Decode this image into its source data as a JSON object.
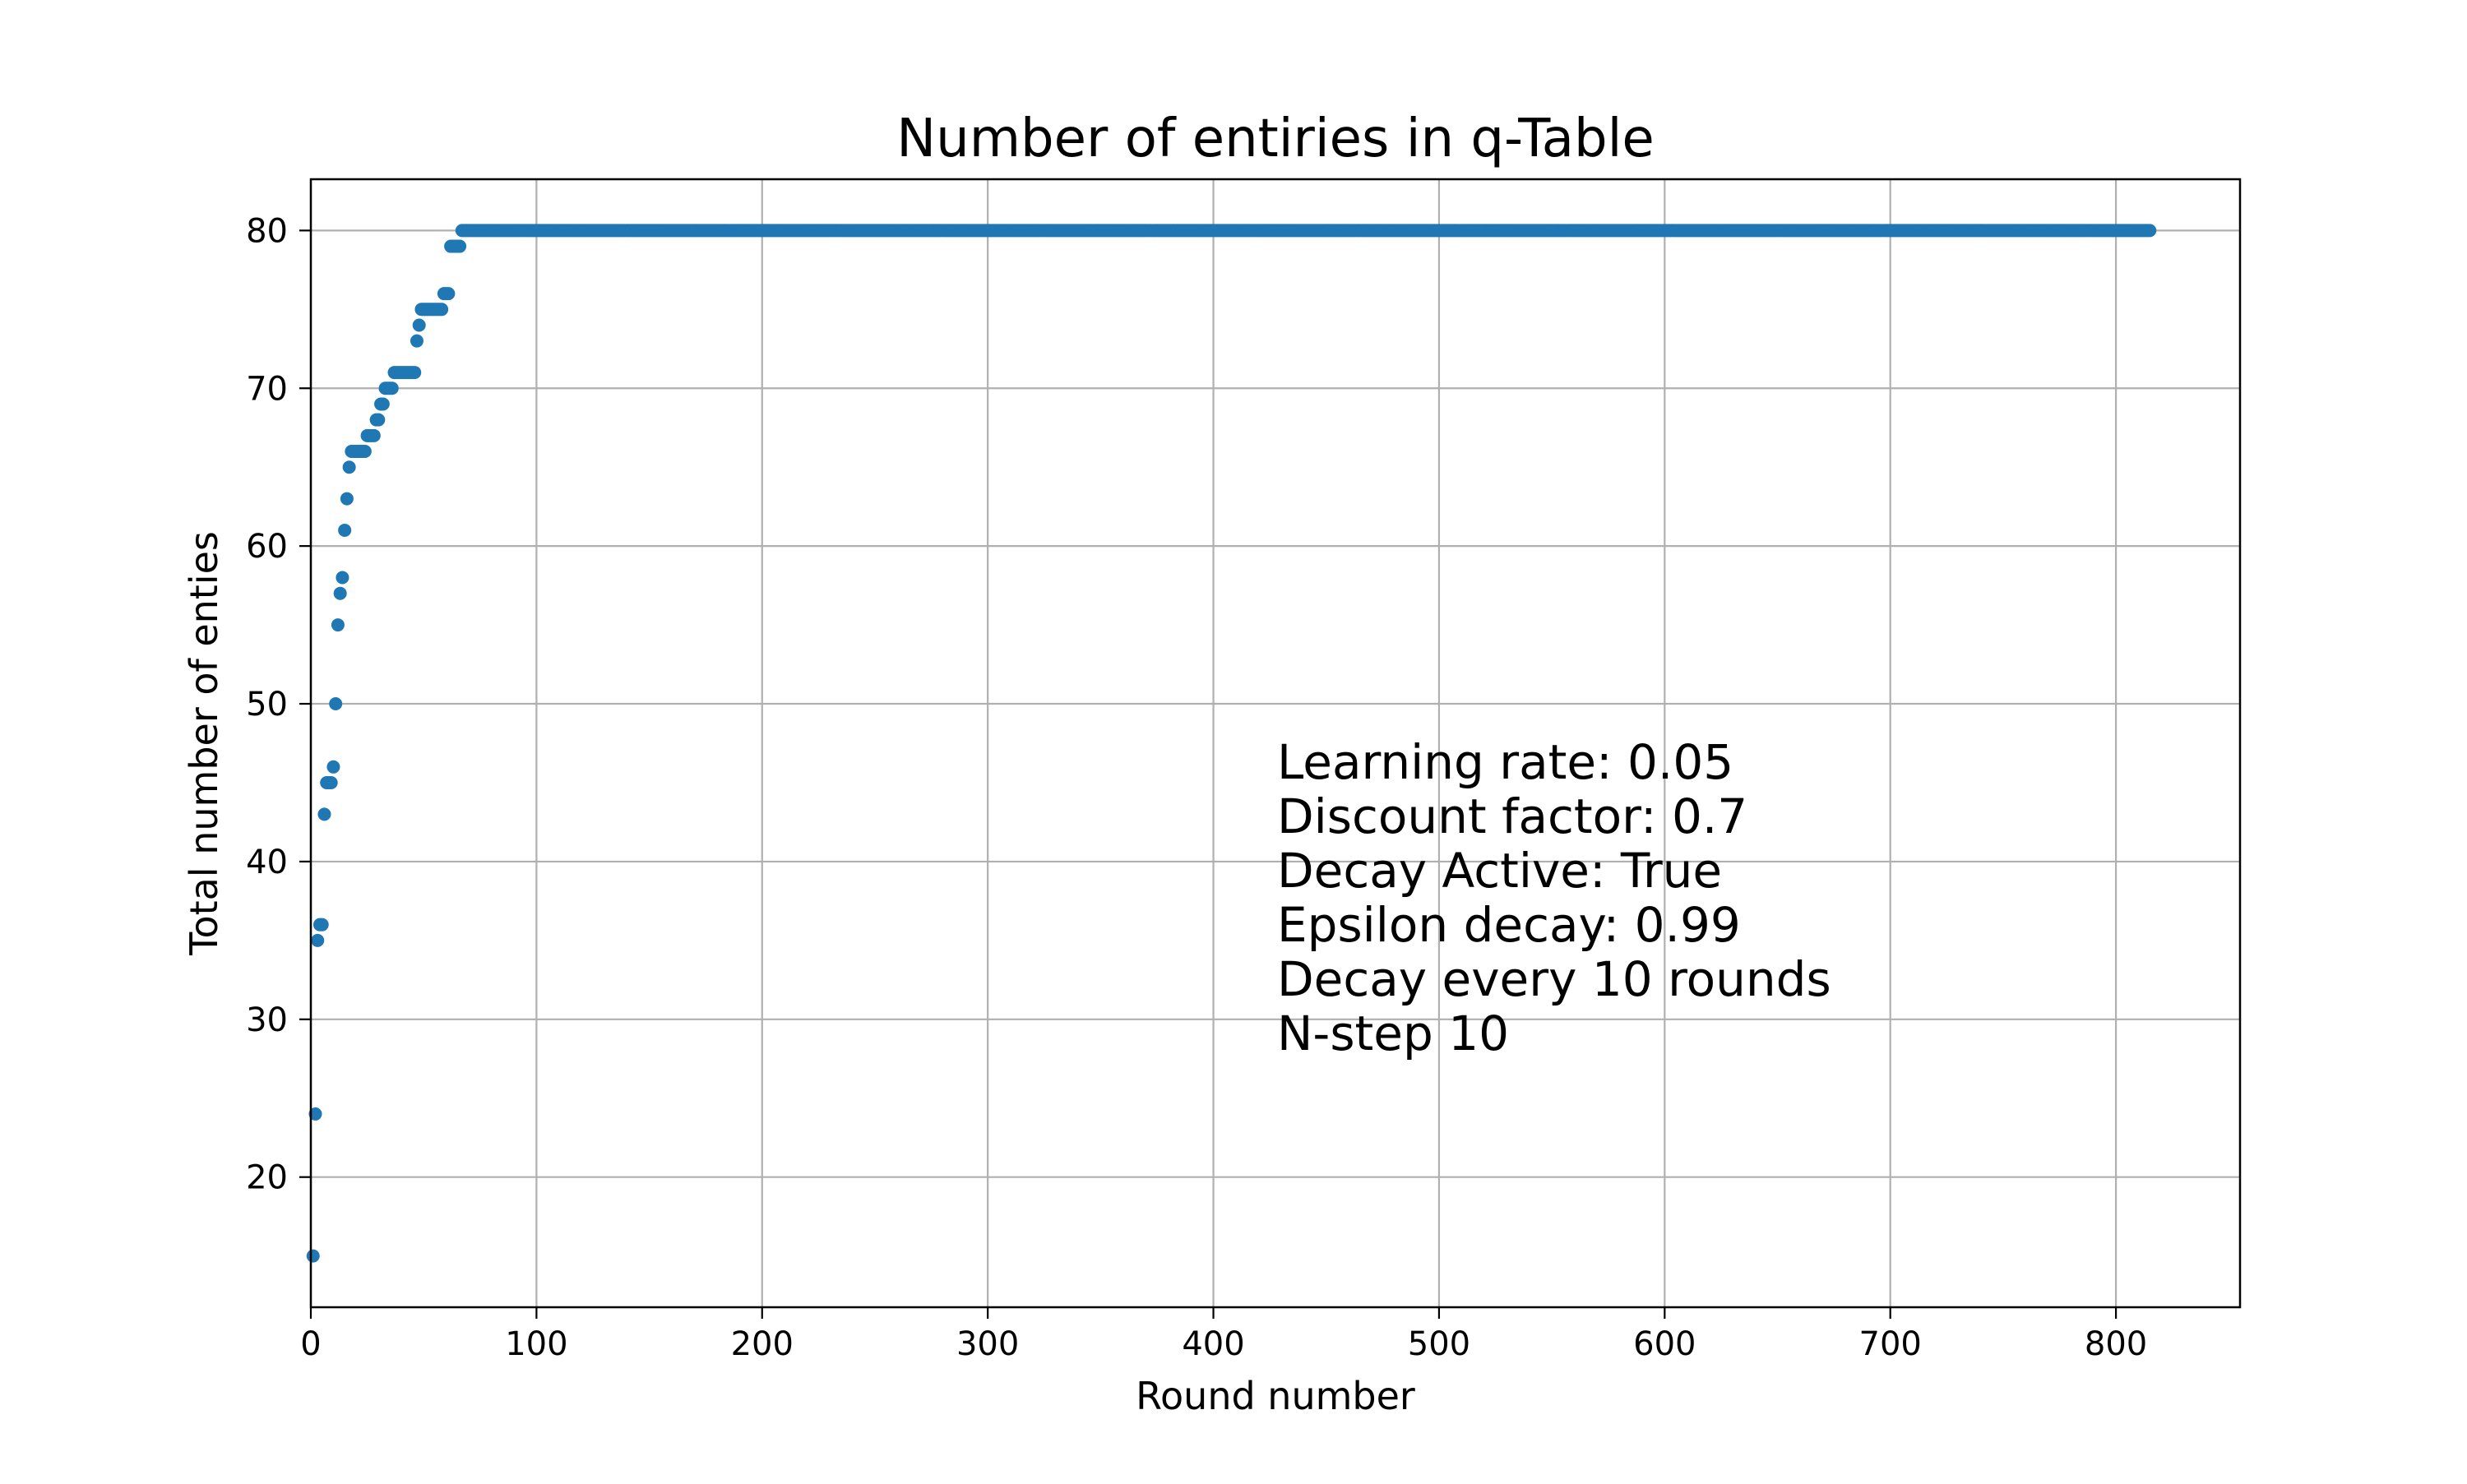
{
  "chart_data": {
    "type": "scatter",
    "title": "Number of entiries in q-Table",
    "xlabel": "Round number",
    "ylabel": "Total number of enties",
    "xlim": [
      0,
      855
    ],
    "ylim": [
      11.75,
      83.25
    ],
    "xticks": [
      "0",
      "100",
      "200",
      "300",
      "400",
      "500",
      "600",
      "700",
      "800"
    ],
    "yticks": [
      "20",
      "30",
      "40",
      "50",
      "60",
      "70",
      "80"
    ],
    "grid": true,
    "color": "#1f77b4",
    "series": [
      {
        "points": [
          [
            1,
            15
          ],
          [
            2,
            24
          ],
          [
            3,
            35
          ],
          [
            4,
            36
          ],
          [
            5,
            36
          ],
          [
            6,
            43
          ],
          [
            7,
            45
          ],
          [
            8,
            45
          ],
          [
            9,
            45
          ],
          [
            10,
            46
          ],
          [
            11,
            50
          ],
          [
            12,
            55
          ],
          [
            13,
            57
          ],
          [
            14,
            58
          ],
          [
            15,
            61
          ],
          [
            16,
            63
          ],
          [
            17,
            65
          ],
          [
            18,
            66
          ],
          [
            19,
            66
          ],
          [
            20,
            66
          ],
          [
            21,
            66
          ],
          [
            22,
            66
          ],
          [
            23,
            66
          ],
          [
            24,
            66
          ],
          [
            25,
            67
          ],
          [
            26,
            67
          ],
          [
            27,
            67
          ],
          [
            28,
            67
          ],
          [
            29,
            68
          ],
          [
            30,
            68
          ],
          [
            31,
            69
          ],
          [
            32,
            69
          ],
          [
            33,
            70
          ],
          [
            34,
            70
          ],
          [
            35,
            70
          ],
          [
            36,
            70
          ],
          [
            37,
            71
          ],
          [
            38,
            71
          ],
          [
            39,
            71
          ],
          [
            40,
            71
          ],
          [
            41,
            71
          ],
          [
            42,
            71
          ],
          [
            43,
            71
          ],
          [
            44,
            71
          ],
          [
            45,
            71
          ],
          [
            46,
            71
          ],
          [
            47,
            73
          ],
          [
            48,
            74
          ],
          [
            49,
            75
          ],
          [
            50,
            75
          ],
          [
            51,
            75
          ],
          [
            52,
            75
          ],
          [
            53,
            75
          ],
          [
            54,
            75
          ],
          [
            55,
            75
          ],
          [
            56,
            75
          ],
          [
            57,
            75
          ],
          [
            58,
            75
          ],
          [
            59,
            76
          ],
          [
            60,
            76
          ],
          [
            61,
            76
          ],
          [
            62,
            79
          ],
          [
            63,
            79
          ],
          [
            64,
            79
          ],
          [
            65,
            79
          ],
          [
            66,
            79
          ],
          [
            67,
            80
          ]
        ],
        "plateau": {
          "value": 80,
          "x_start": 68,
          "x_end": 815
        }
      }
    ],
    "annotation": [
      "Learning rate: 0.05",
      "Discount factor: 0.7",
      "Decay Active: True",
      "Epsilon decay: 0.99",
      "Decay every 10 rounds",
      "N-step 10"
    ]
  }
}
